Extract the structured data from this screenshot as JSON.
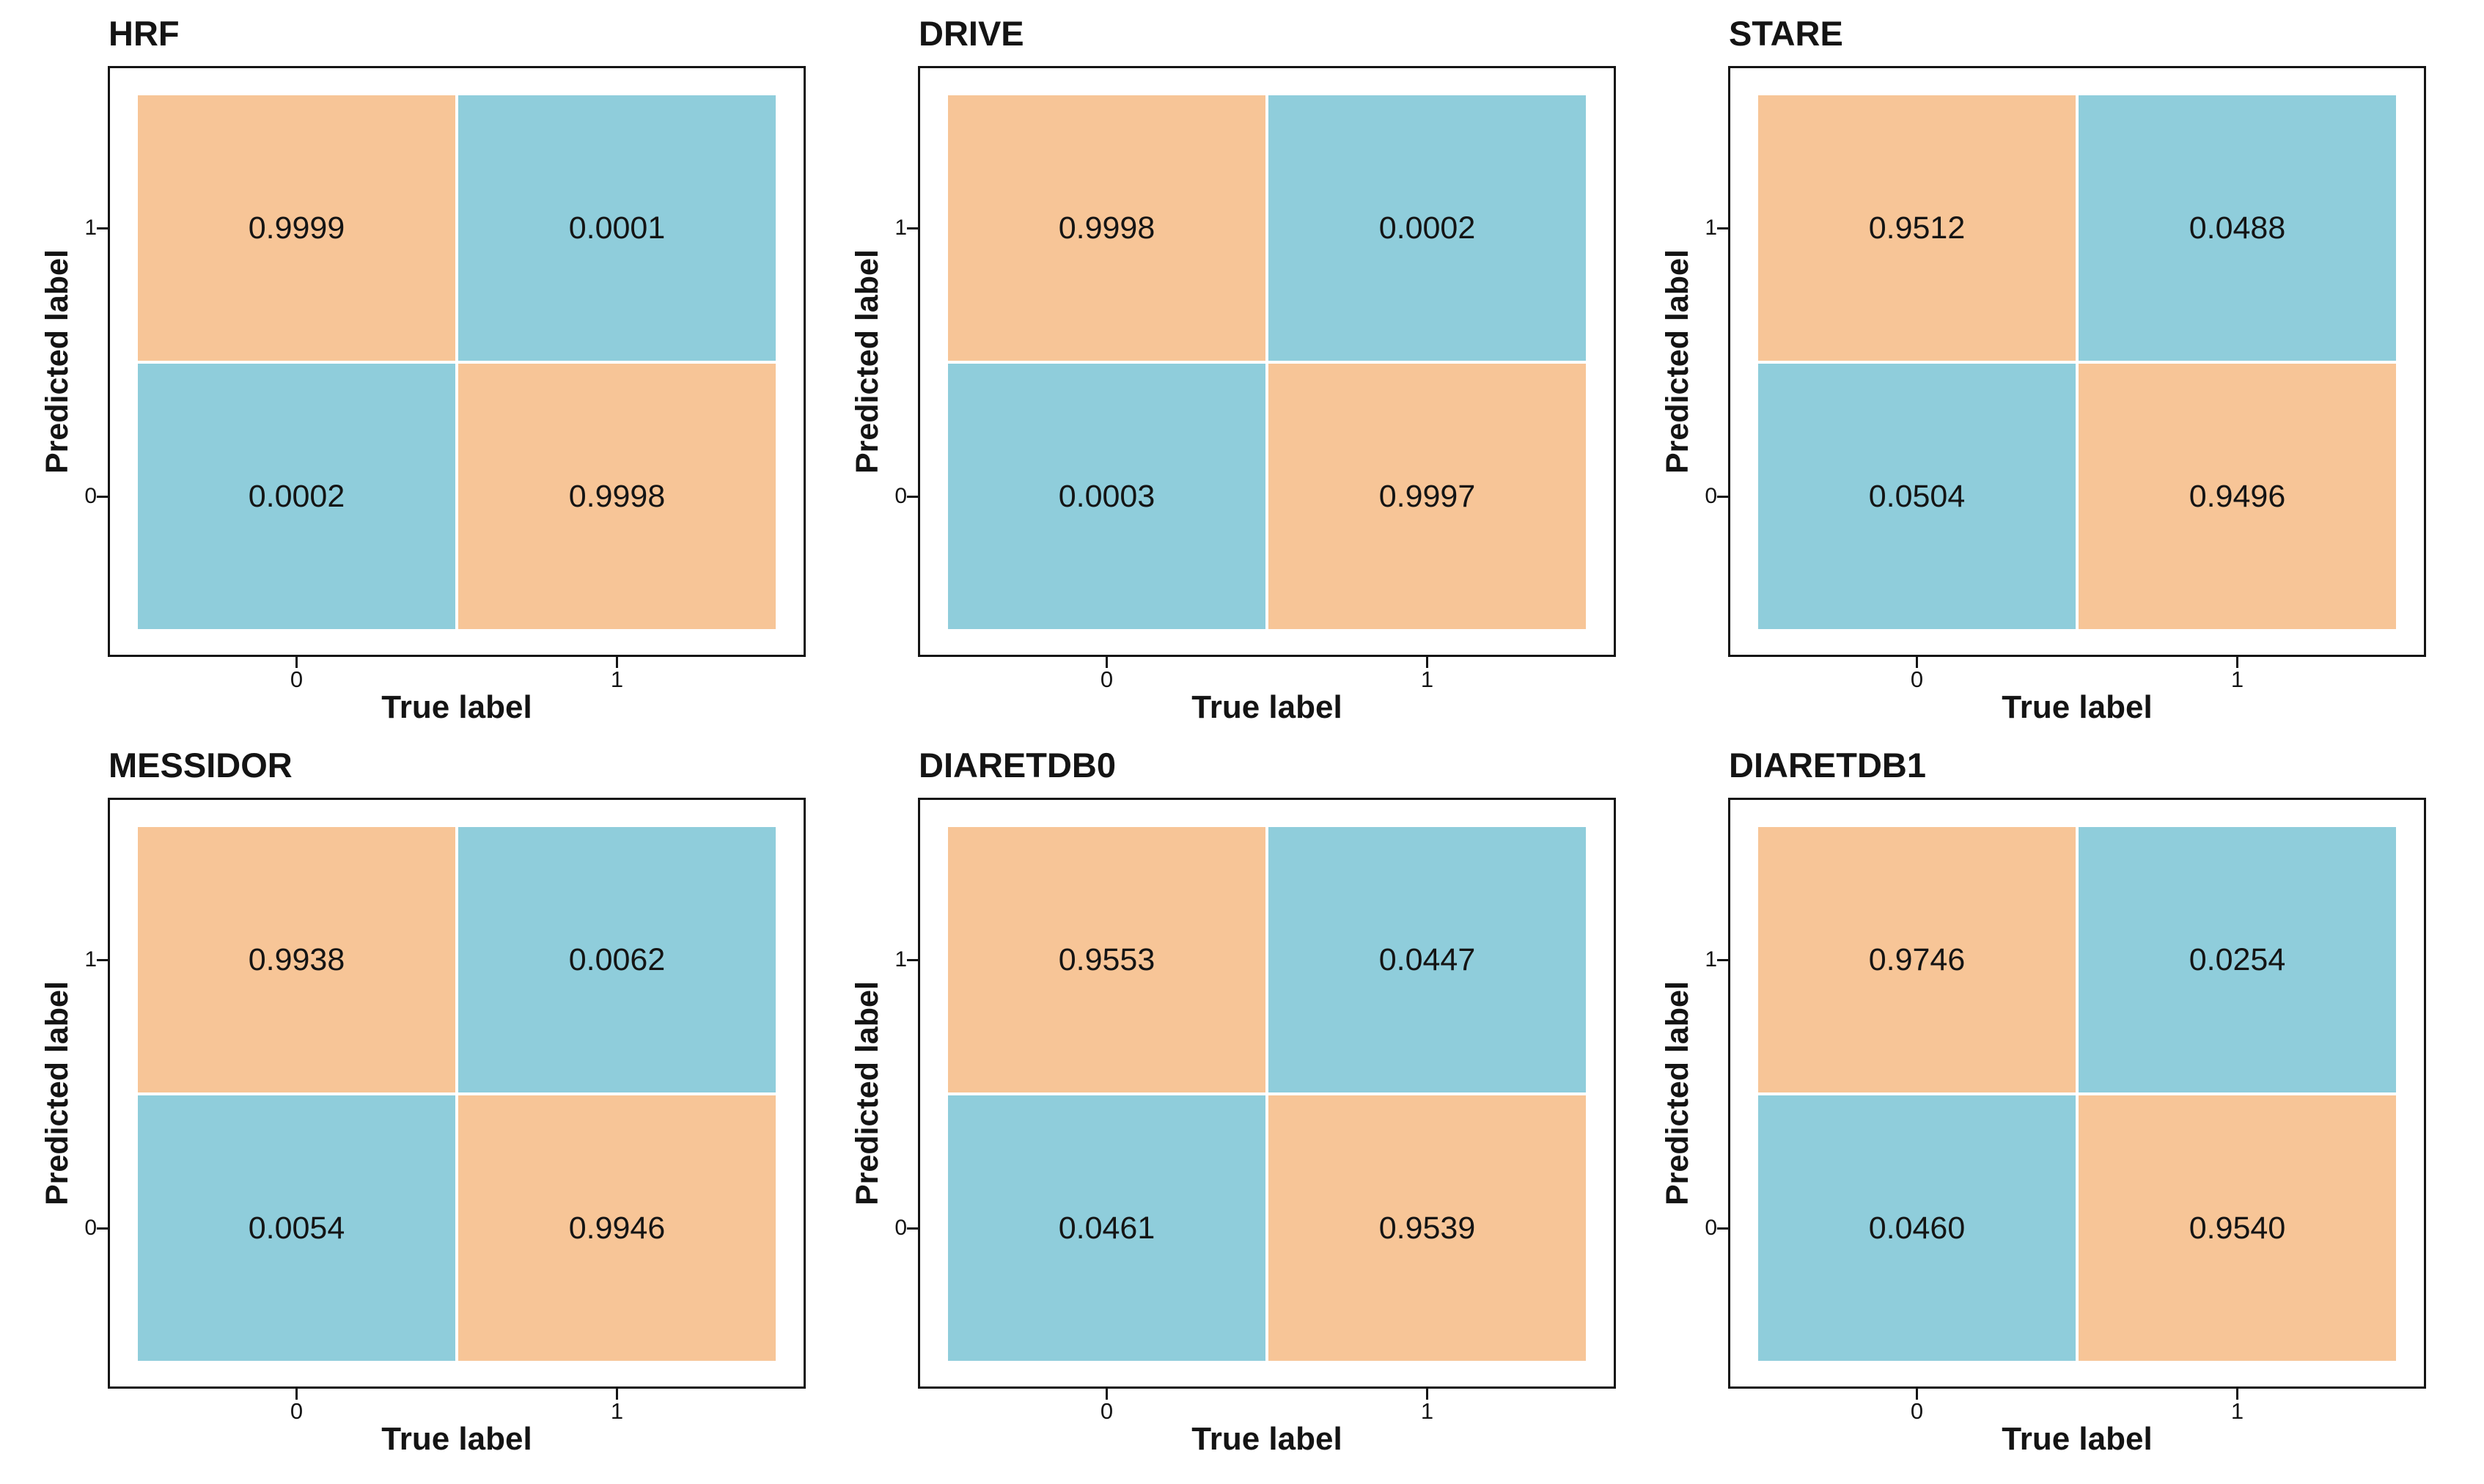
{
  "figure": {
    "layout": {
      "rows": 2,
      "cols": 3
    },
    "x_axis_label": "True label",
    "y_axis_label": "Predicted label",
    "x_tick_labels": [
      "0",
      "1"
    ],
    "y_tick_labels": [
      "1",
      "0"
    ],
    "colors": {
      "diagonal_cell": "#F7C597",
      "off_diagonal_cell": "#8FCDDB",
      "frame": "#151515",
      "text": "#141414",
      "background": "#FFFFFF"
    }
  },
  "chart_data": [
    {
      "type": "heatmap",
      "title": "HRF",
      "xlabel": "True label",
      "ylabel": "Predicted label",
      "x_categories": [
        "0",
        "1"
      ],
      "y_categories": [
        "1",
        "0"
      ],
      "values": [
        [
          0.9999,
          0.0001
        ],
        [
          0.0002,
          0.9998
        ]
      ],
      "labels": [
        [
          "0.9999",
          "0.0001"
        ],
        [
          "0.0002",
          "0.9998"
        ]
      ],
      "cell_color_pattern": [
        [
          "orange",
          "blue"
        ],
        [
          "blue",
          "orange"
        ]
      ]
    },
    {
      "type": "heatmap",
      "title": "DRIVE",
      "xlabel": "True label",
      "ylabel": "Predicted label",
      "x_categories": [
        "0",
        "1"
      ],
      "y_categories": [
        "1",
        "0"
      ],
      "values": [
        [
          0.9998,
          0.0002
        ],
        [
          0.0003,
          0.9997
        ]
      ],
      "labels": [
        [
          "0.9998",
          "0.0002"
        ],
        [
          "0.0003",
          "0.9997"
        ]
      ],
      "cell_color_pattern": [
        [
          "orange",
          "blue"
        ],
        [
          "blue",
          "orange"
        ]
      ]
    },
    {
      "type": "heatmap",
      "title": "STARE",
      "xlabel": "True label",
      "ylabel": "Predicted label",
      "x_categories": [
        "0",
        "1"
      ],
      "y_categories": [
        "1",
        "0"
      ],
      "values": [
        [
          0.9512,
          0.0488
        ],
        [
          0.0504,
          0.9496
        ]
      ],
      "labels": [
        [
          "0.9512",
          "0.0488"
        ],
        [
          "0.0504",
          "0.9496"
        ]
      ],
      "cell_color_pattern": [
        [
          "orange",
          "blue"
        ],
        [
          "blue",
          "orange"
        ]
      ]
    },
    {
      "type": "heatmap",
      "title": "MESSIDOR",
      "xlabel": "True label",
      "ylabel": "Predicted label",
      "x_categories": [
        "0",
        "1"
      ],
      "y_categories": [
        "1",
        "0"
      ],
      "values": [
        [
          0.9938,
          0.0062
        ],
        [
          0.0054,
          0.9946
        ]
      ],
      "labels": [
        [
          "0.9938",
          "0.0062"
        ],
        [
          "0.0054",
          "0.9946"
        ]
      ],
      "cell_color_pattern": [
        [
          "orange",
          "blue"
        ],
        [
          "blue",
          "orange"
        ]
      ]
    },
    {
      "type": "heatmap",
      "title": "DIARETDB0",
      "xlabel": "True label",
      "ylabel": "Predicted label",
      "x_categories": [
        "0",
        "1"
      ],
      "y_categories": [
        "1",
        "0"
      ],
      "values": [
        [
          0.9553,
          0.0447
        ],
        [
          0.0461,
          0.9539
        ]
      ],
      "labels": [
        [
          "0.9553",
          "0.0447"
        ],
        [
          "0.0461",
          "0.9539"
        ]
      ],
      "cell_color_pattern": [
        [
          "orange",
          "blue"
        ],
        [
          "blue",
          "orange"
        ]
      ]
    },
    {
      "type": "heatmap",
      "title": "DIARETDB1",
      "xlabel": "True label",
      "ylabel": "Predicted label",
      "x_categories": [
        "0",
        "1"
      ],
      "y_categories": [
        "1",
        "0"
      ],
      "values": [
        [
          0.9746,
          0.0254
        ],
        [
          0.046,
          0.954
        ]
      ],
      "labels": [
        [
          "0.9746",
          "0.0254"
        ],
        [
          "0.0460",
          "0.9540"
        ]
      ],
      "cell_color_pattern": [
        [
          "orange",
          "blue"
        ],
        [
          "blue",
          "orange"
        ]
      ]
    }
  ]
}
